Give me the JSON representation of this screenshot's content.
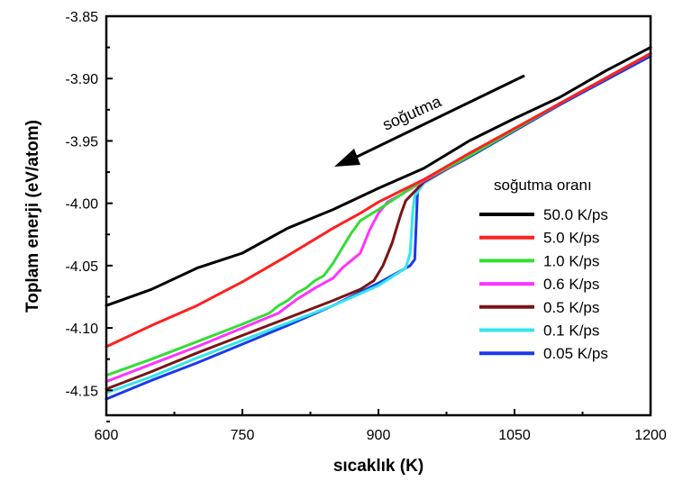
{
  "chart_data": {
    "type": "line",
    "xlabel": "sıcaklık (K)",
    "ylabel": "Toplam enerji (eV/atom)",
    "xlim": [
      600,
      1200
    ],
    "ylim": [
      -4.17,
      -3.85
    ],
    "x_ticks": [
      600,
      750,
      900,
      1050,
      1200
    ],
    "x_tick_labels": [
      "600",
      "750",
      "900",
      "1050",
      "1200"
    ],
    "y_ticks": [
      -3.85,
      -3.9,
      -3.95,
      -4.0,
      -4.05,
      -4.1,
      -4.15
    ],
    "y_tick_labels": [
      "-3.85",
      "-3.90",
      "-3.95",
      "-4.00",
      "-4.05",
      "-4.10",
      "-4.15"
    ],
    "grid": false,
    "legend": {
      "title": "soğutma oranı",
      "placement": "right"
    },
    "annotation": {
      "text": "soğutma",
      "arrow_direction": "toward lower temperature"
    },
    "series": [
      {
        "name": "50.0 K/ps",
        "color": "#000000",
        "points": [
          [
            600,
            -4.082
          ],
          [
            650,
            -4.069
          ],
          [
            700,
            -4.052
          ],
          [
            750,
            -4.04
          ],
          [
            800,
            -4.02
          ],
          [
            850,
            -4.005
          ],
          [
            900,
            -3.988
          ],
          [
            950,
            -3.972
          ],
          [
            1000,
            -3.95
          ],
          [
            1050,
            -3.932
          ],
          [
            1100,
            -3.915
          ],
          [
            1150,
            -3.894
          ],
          [
            1200,
            -3.875
          ]
        ]
      },
      {
        "name": "5.0 K/ps",
        "color": "#ff2020",
        "points": [
          [
            600,
            -4.115
          ],
          [
            650,
            -4.098
          ],
          [
            700,
            -4.082
          ],
          [
            750,
            -4.063
          ],
          [
            800,
            -4.042
          ],
          [
            850,
            -4.02
          ],
          [
            880,
            -4.008
          ],
          [
            900,
            -3.999
          ],
          [
            950,
            -3.981
          ],
          [
            1000,
            -3.96
          ],
          [
            1100,
            -3.92
          ],
          [
            1200,
            -3.88
          ]
        ]
      },
      {
        "name": "1.0 K/ps",
        "color": "#33dd33",
        "points": [
          [
            600,
            -4.138
          ],
          [
            650,
            -4.125
          ],
          [
            700,
            -4.111
          ],
          [
            750,
            -4.097
          ],
          [
            780,
            -4.088
          ],
          [
            790,
            -4.082
          ],
          [
            800,
            -4.078
          ],
          [
            810,
            -4.072
          ],
          [
            820,
            -4.068
          ],
          [
            830,
            -4.062
          ],
          [
            840,
            -4.058
          ],
          [
            850,
            -4.048
          ],
          [
            860,
            -4.036
          ],
          [
            870,
            -4.024
          ],
          [
            880,
            -4.014
          ],
          [
            900,
            -4.005
          ],
          [
            950,
            -3.981
          ],
          [
            1000,
            -3.962
          ],
          [
            1100,
            -3.92
          ],
          [
            1200,
            -3.88
          ]
        ]
      },
      {
        "name": "0.6 K/ps",
        "color": "#ff33ff",
        "points": [
          [
            600,
            -4.143
          ],
          [
            650,
            -4.129
          ],
          [
            700,
            -4.115
          ],
          [
            750,
            -4.1
          ],
          [
            790,
            -4.088
          ],
          [
            810,
            -4.077
          ],
          [
            830,
            -4.068
          ],
          [
            850,
            -4.06
          ],
          [
            860,
            -4.052
          ],
          [
            870,
            -4.046
          ],
          [
            880,
            -4.04
          ],
          [
            890,
            -4.022
          ],
          [
            900,
            -4.008
          ],
          [
            910,
            -3.999
          ],
          [
            925,
            -3.993
          ],
          [
            950,
            -3.982
          ],
          [
            1000,
            -3.962
          ],
          [
            1100,
            -3.92
          ],
          [
            1200,
            -3.88
          ]
        ]
      },
      {
        "name": "0.5 K/ps",
        "color": "#7a1515",
        "points": [
          [
            600,
            -4.149
          ],
          [
            650,
            -4.135
          ],
          [
            700,
            -4.12
          ],
          [
            750,
            -4.106
          ],
          [
            800,
            -4.092
          ],
          [
            850,
            -4.078
          ],
          [
            880,
            -4.069
          ],
          [
            895,
            -4.062
          ],
          [
            905,
            -4.05
          ],
          [
            915,
            -4.032
          ],
          [
            920,
            -4.02
          ],
          [
            925,
            -4.008
          ],
          [
            930,
            -3.998
          ],
          [
            950,
            -3.983
          ],
          [
            1000,
            -3.962
          ],
          [
            1100,
            -3.92
          ],
          [
            1200,
            -3.88
          ]
        ]
      },
      {
        "name": "0.1 K/ps",
        "color": "#33e5ee",
        "points": [
          [
            600,
            -4.152
          ],
          [
            650,
            -4.139
          ],
          [
            700,
            -4.124
          ],
          [
            750,
            -4.11
          ],
          [
            800,
            -4.096
          ],
          [
            850,
            -4.082
          ],
          [
            900,
            -4.066
          ],
          [
            930,
            -4.052
          ],
          [
            935,
            -4.04
          ],
          [
            938,
            -4.005
          ],
          [
            940,
            -3.994
          ],
          [
            950,
            -3.984
          ],
          [
            1000,
            -3.962
          ],
          [
            1100,
            -3.92
          ],
          [
            1200,
            -3.88
          ]
        ]
      },
      {
        "name": "0.05 K/ps",
        "color": "#1a3ae8",
        "points": [
          [
            600,
            -4.157
          ],
          [
            650,
            -4.142
          ],
          [
            700,
            -4.128
          ],
          [
            750,
            -4.113
          ],
          [
            800,
            -4.098
          ],
          [
            850,
            -4.082
          ],
          [
            900,
            -4.064
          ],
          [
            935,
            -4.05
          ],
          [
            940,
            -4.045
          ],
          [
            943,
            -3.992
          ],
          [
            945,
            -3.985
          ],
          [
            1000,
            -3.963
          ],
          [
            1100,
            -3.921
          ],
          [
            1200,
            -3.882
          ]
        ]
      }
    ]
  }
}
